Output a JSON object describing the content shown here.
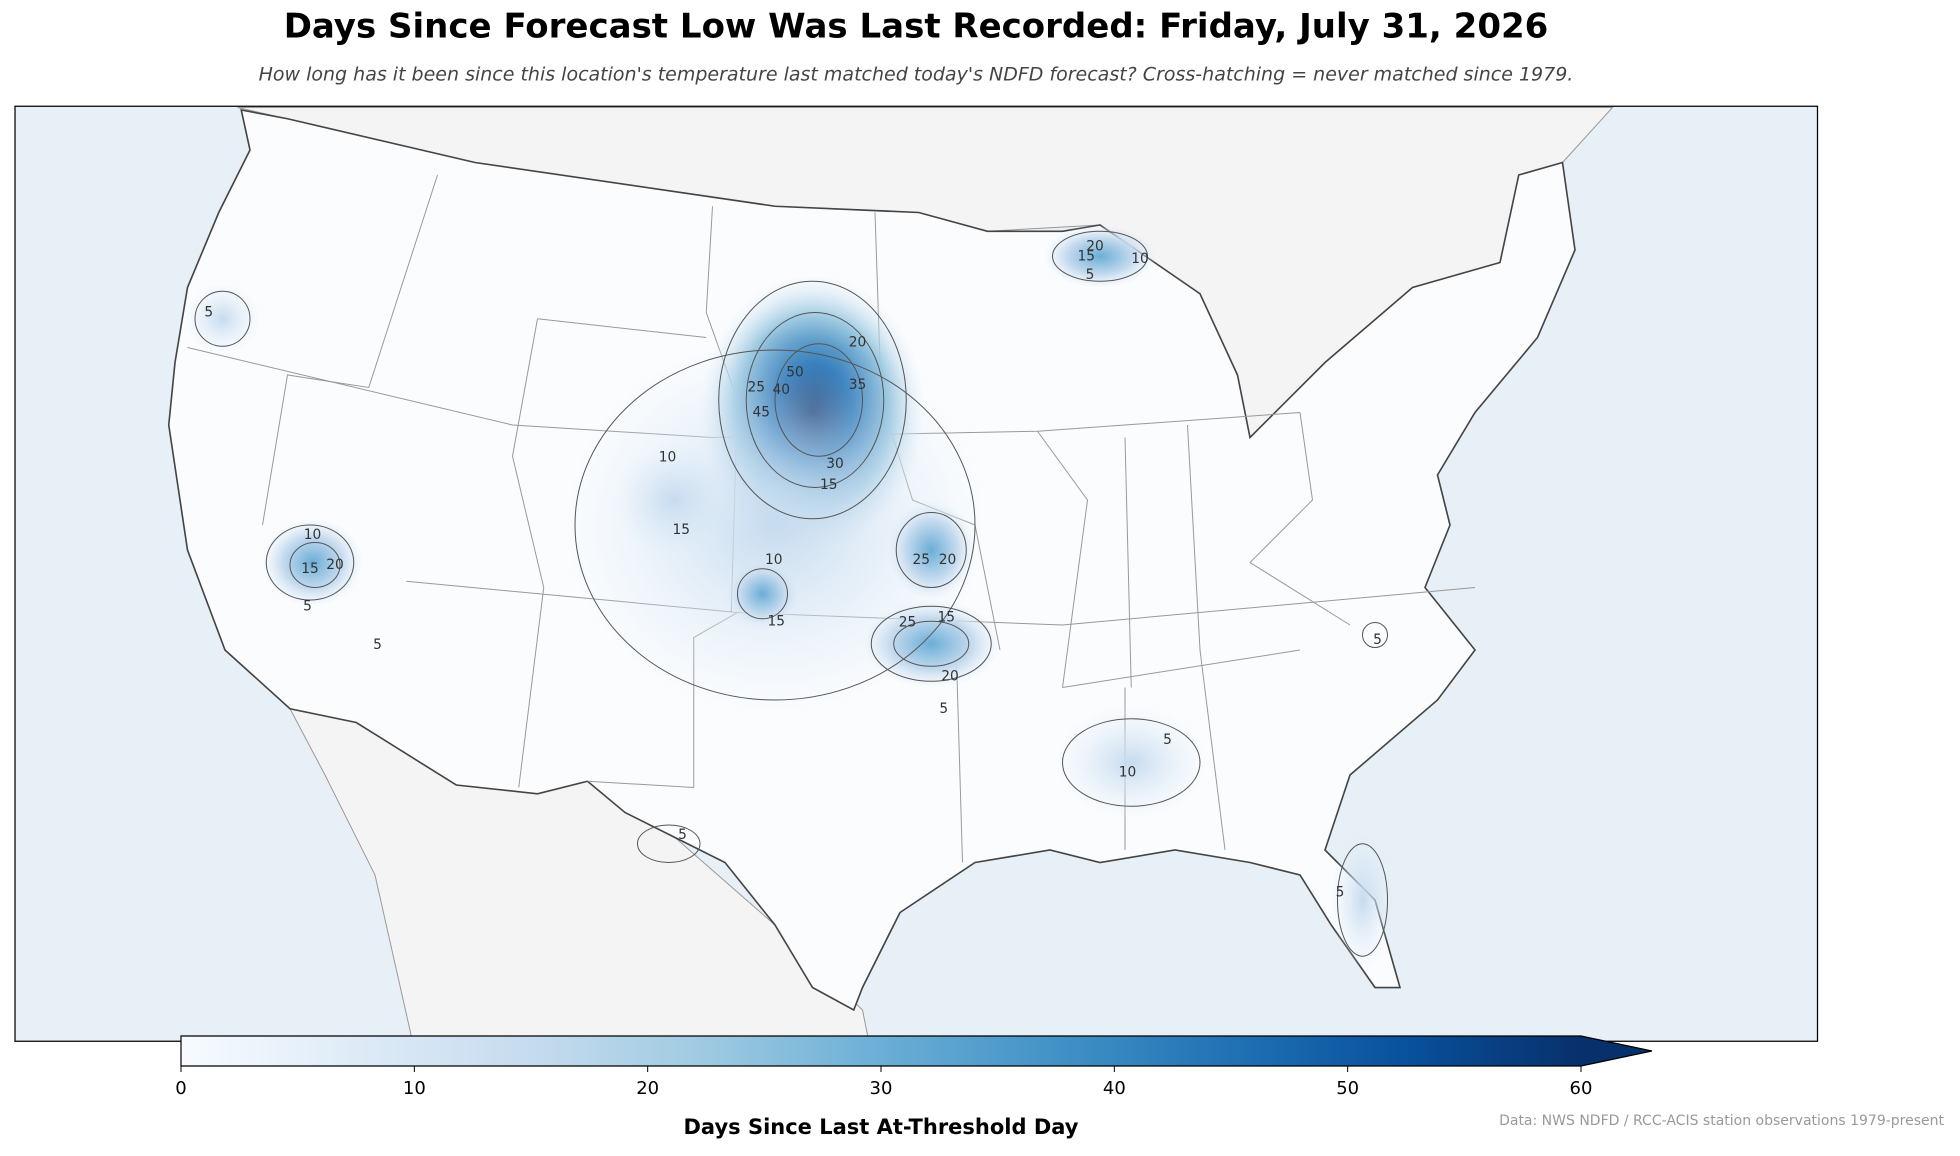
{
  "chart_data": {
    "type": "map",
    "title": "Days Since Forecast Low Was Last Recorded: Friday, July 31, 2026",
    "subtitle": "How long has it been since this location's temperature last matched today's NDFD forecast? Cross-hatching = never matched since 1979.",
    "colorbar_label": "Days Since Last At-Threshold Day",
    "source": "Data: NWS NDFD / RCC-ACIS station observations 1979-present",
    "xlim": [
      0,
      60
    ],
    "xticks": [
      0,
      10,
      20,
      30,
      40,
      50,
      60
    ],
    "colormap": [
      "#f7fbff",
      "#deebf7",
      "#c6dbef",
      "#9ecae1",
      "#6baed6",
      "#4292c6",
      "#2171b5",
      "#08519c",
      "#08306b"
    ],
    "contour_labels": [
      5,
      10,
      15,
      20,
      5,
      5,
      10,
      15,
      25,
      40,
      50,
      45,
      20,
      35,
      30,
      15,
      10,
      15,
      25,
      20,
      25,
      15,
      20,
      5,
      20,
      15,
      10,
      5,
      5,
      10,
      5,
      5,
      5
    ]
  }
}
